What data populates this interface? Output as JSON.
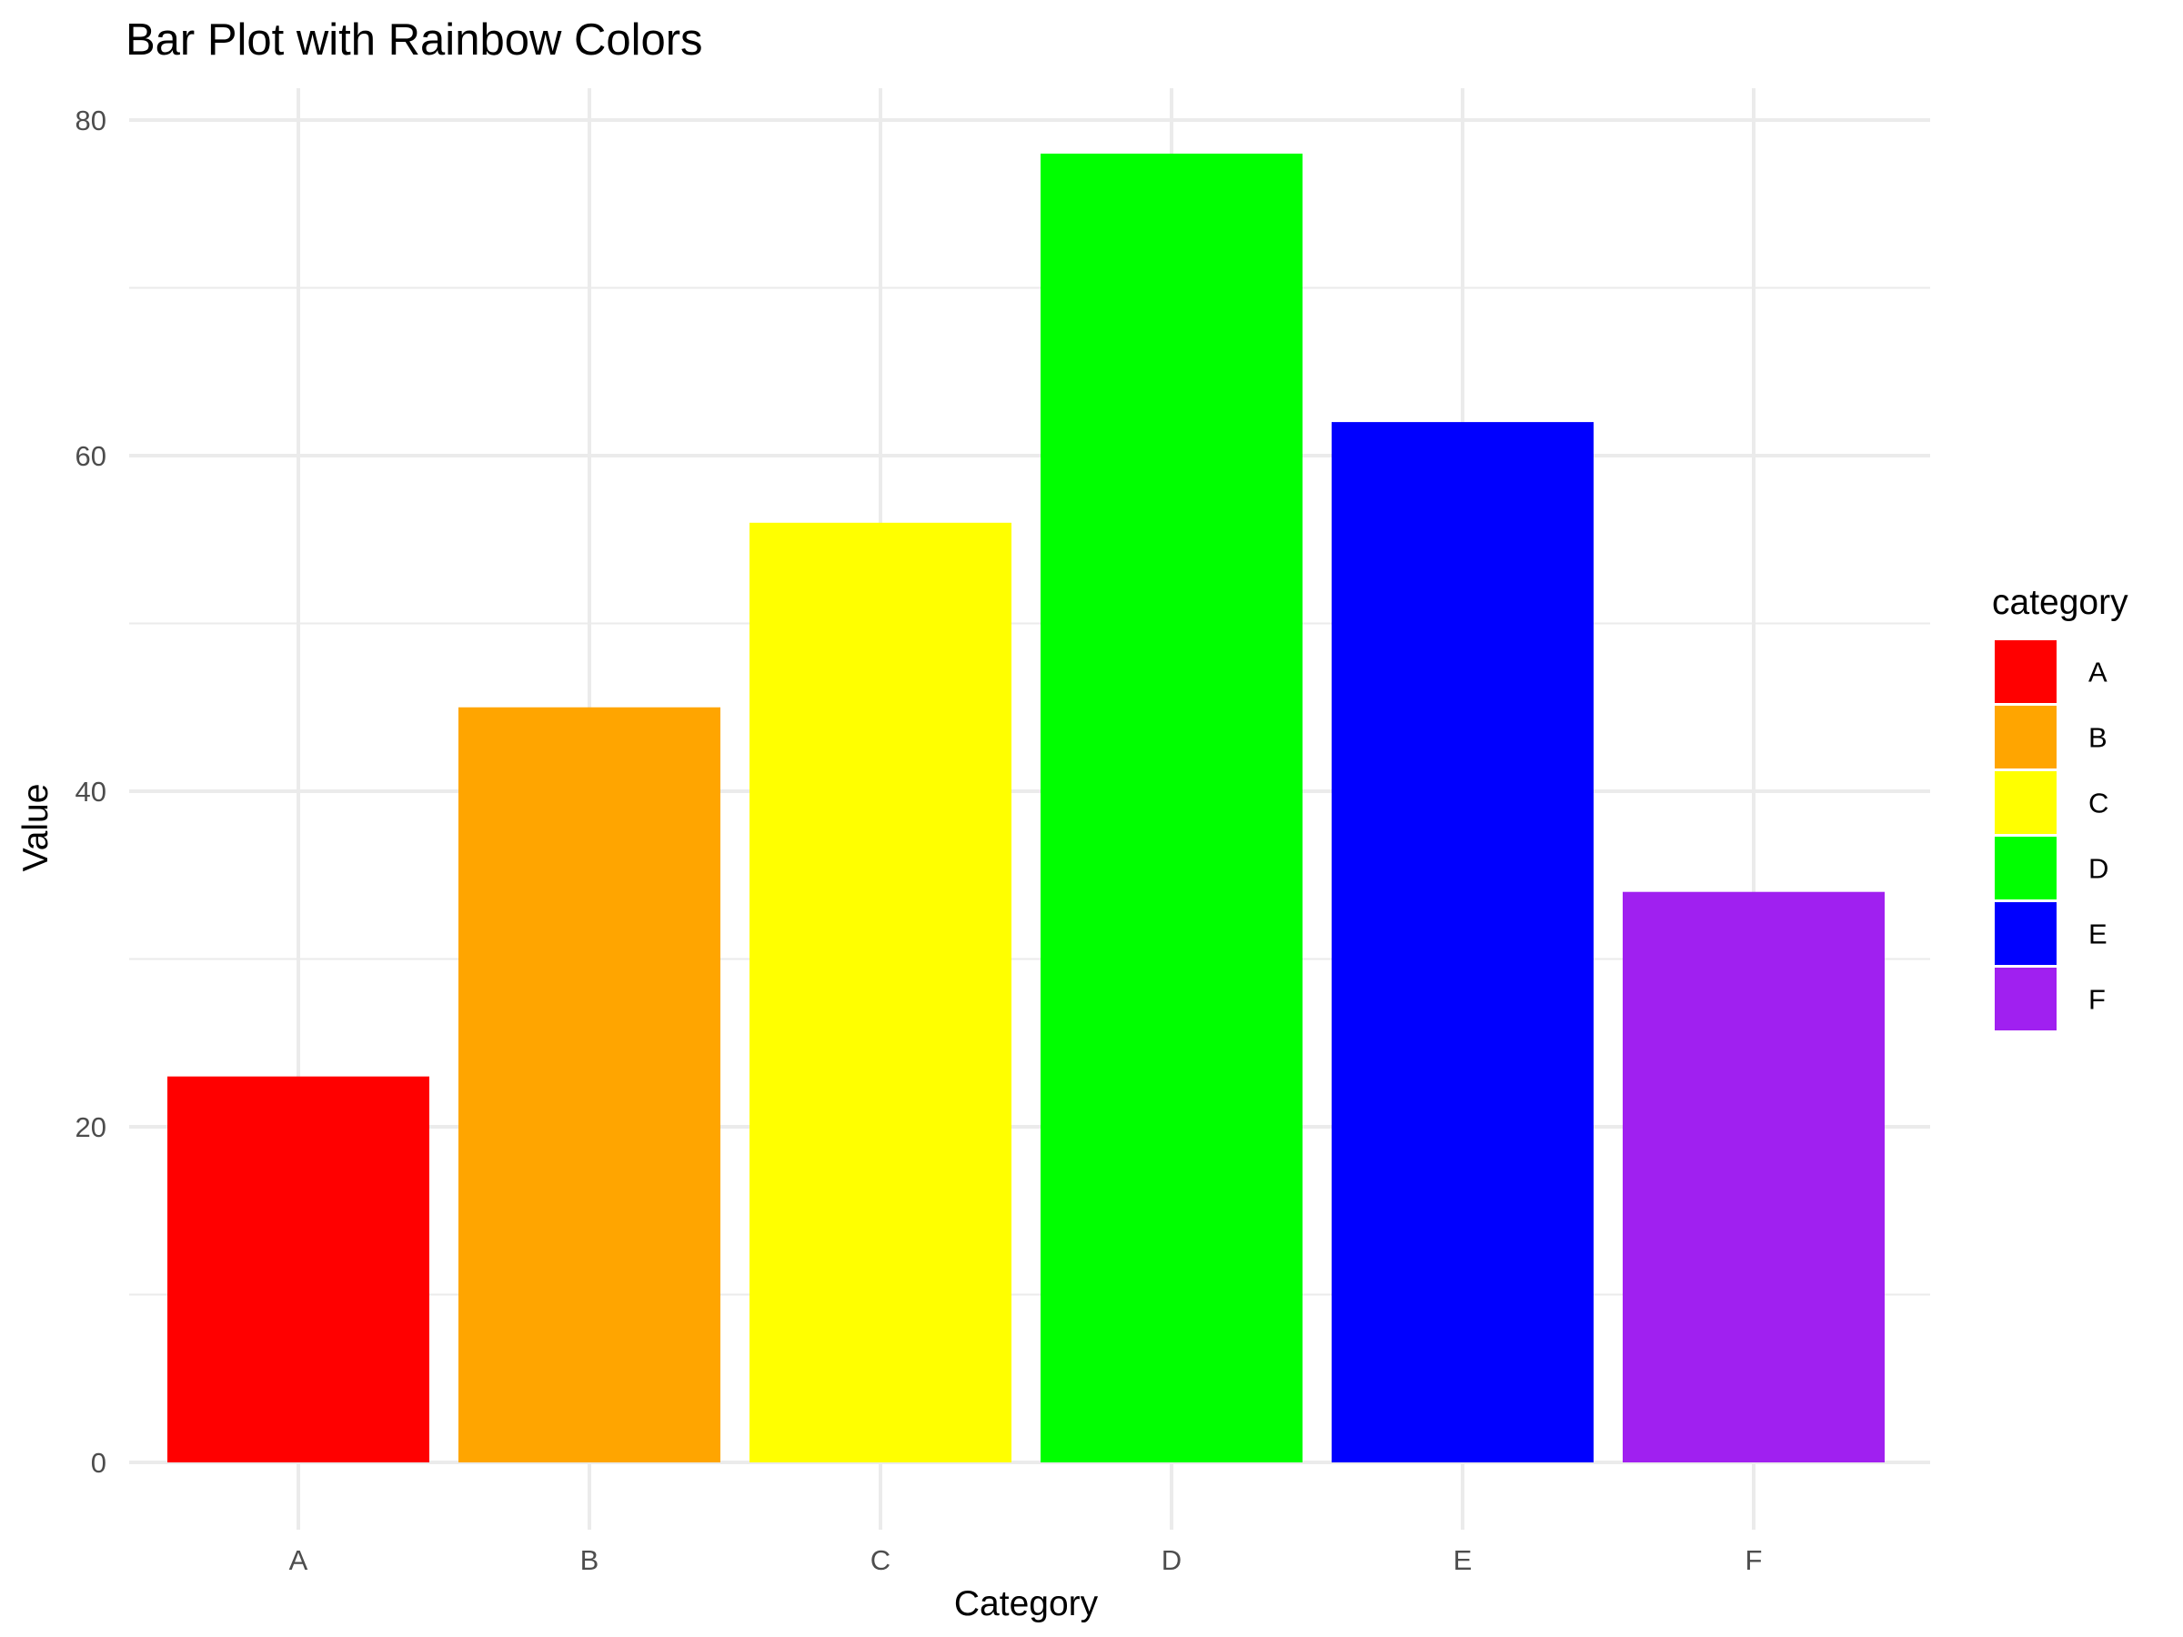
{
  "chart_data": {
    "type": "bar",
    "title": "Bar Plot with Rainbow Colors",
    "xlabel": "Category",
    "ylabel": "Value",
    "categories": [
      "A",
      "B",
      "C",
      "D",
      "E",
      "F"
    ],
    "values": [
      23,
      45,
      56,
      78,
      62,
      34
    ],
    "colors": [
      "#ff0000",
      "#ffa500",
      "#ffff00",
      "#00ff00",
      "#0000ff",
      "#a020f0"
    ],
    "ylim": [
      0,
      80
    ],
    "y_ticks": [
      0,
      20,
      40,
      60,
      80
    ],
    "y_tick_labels": [
      "0",
      "20",
      "40",
      "60",
      "80"
    ],
    "grid": true,
    "legend": {
      "title": "category",
      "placement": "right",
      "entries": [
        "A",
        "B",
        "C",
        "D",
        "E",
        "F"
      ]
    }
  }
}
